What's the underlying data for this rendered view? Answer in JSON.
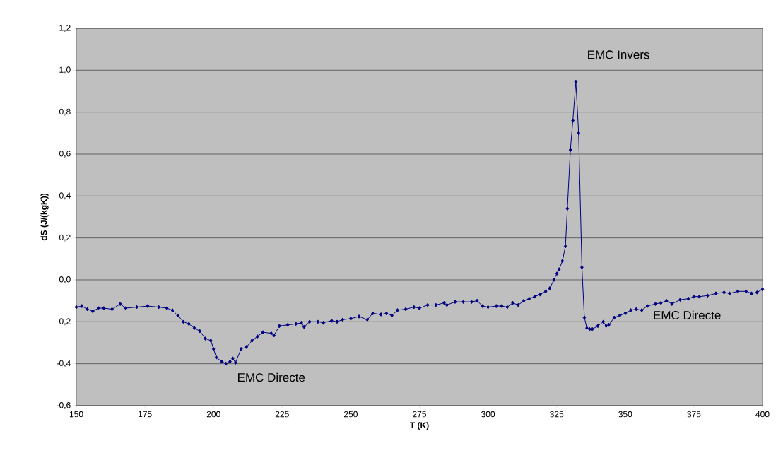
{
  "chart_data": {
    "type": "line",
    "xlabel": "T (K)",
    "ylabel": "dS (J/(kgK))",
    "xlim": [
      150,
      400
    ],
    "xticks": [
      150,
      175,
      200,
      225,
      250,
      275,
      300,
      325,
      350,
      375,
      400
    ],
    "ylim": [
      -0.6,
      1.2
    ],
    "yticks": [
      {
        "value": -0.6,
        "label": "-0,6"
      },
      {
        "value": -0.4,
        "label": "-0,4"
      },
      {
        "value": -0.2,
        "label": "-0,2"
      },
      {
        "value": 0,
        "label": "0,0"
      },
      {
        "value": 0.2,
        "label": "0,2"
      },
      {
        "value": 0.4,
        "label": "0,4"
      },
      {
        "value": 0.6,
        "label": "0,6"
      },
      {
        "value": 0.8,
        "label": "0,8"
      },
      {
        "value": 1.0,
        "label": "1,0"
      },
      {
        "value": 1.2,
        "label": "1,2"
      }
    ],
    "grid": "y",
    "marker": "diamond",
    "line_style": "solid",
    "annotations": [
      "EMC Invers",
      "EMC Directe",
      "EMC Directe"
    ],
    "series": [
      {
        "color": "#000080",
        "x": [
          150,
          152,
          154,
          156,
          158,
          160,
          163,
          166,
          168,
          172,
          176,
          180,
          183,
          185,
          187,
          189,
          191,
          193,
          195,
          197,
          199,
          200,
          201,
          203,
          204.5,
          206,
          207,
          208,
          210,
          212,
          214,
          216,
          218,
          221,
          222,
          224,
          227,
          230,
          232,
          233,
          235,
          238,
          240,
          243,
          245,
          247,
          250,
          253,
          256,
          258,
          261,
          263,
          265,
          267,
          270,
          273,
          275,
          278,
          281,
          284,
          285,
          288,
          291,
          294,
          296,
          298,
          300,
          303,
          305,
          307,
          309,
          311,
          313,
          315,
          317,
          319,
          321,
          322.5,
          324,
          325.1,
          325.9,
          327.1,
          328.2,
          328.9,
          330,
          330.9,
          332,
          333,
          334.2,
          335.1,
          336,
          337,
          338,
          340,
          342,
          343,
          344,
          346,
          348,
          350,
          352,
          354,
          356,
          358,
          361,
          363,
          365,
          367,
          370,
          373,
          375,
          377,
          380,
          383,
          386,
          388,
          391,
          394,
          396,
          398,
          400
        ],
        "values": [
          -0.13,
          -0.125,
          -0.14,
          -0.15,
          -0.135,
          -0.135,
          -0.14,
          -0.115,
          -0.135,
          -0.13,
          -0.125,
          -0.13,
          -0.135,
          -0.145,
          -0.17,
          -0.2,
          -0.21,
          -0.23,
          -0.245,
          -0.28,
          -0.29,
          -0.33,
          -0.37,
          -0.39,
          -0.4,
          -0.39,
          -0.375,
          -0.395,
          -0.33,
          -0.32,
          -0.29,
          -0.27,
          -0.25,
          -0.255,
          -0.265,
          -0.22,
          -0.215,
          -0.21,
          -0.205,
          -0.225,
          -0.2,
          -0.2,
          -0.205,
          -0.195,
          -0.2,
          -0.19,
          -0.185,
          -0.175,
          -0.19,
          -0.16,
          -0.165,
          -0.16,
          -0.17,
          -0.145,
          -0.14,
          -0.13,
          -0.135,
          -0.12,
          -0.12,
          -0.11,
          -0.12,
          -0.105,
          -0.105,
          -0.105,
          -0.1,
          -0.125,
          -0.13,
          -0.125,
          -0.125,
          -0.13,
          -0.11,
          -0.12,
          -0.1,
          -0.09,
          -0.08,
          -0.07,
          -0.055,
          -0.04,
          0.0,
          0.03,
          0.05,
          0.09,
          0.16,
          0.34,
          0.62,
          0.76,
          0.945,
          0.7,
          0.06,
          -0.18,
          -0.23,
          -0.235,
          -0.235,
          -0.22,
          -0.2,
          -0.22,
          -0.215,
          -0.18,
          -0.17,
          -0.16,
          -0.145,
          -0.14,
          -0.145,
          -0.125,
          -0.115,
          -0.11,
          -0.1,
          -0.115,
          -0.095,
          -0.09,
          -0.08,
          -0.08,
          -0.075,
          -0.065,
          -0.06,
          -0.065,
          -0.055,
          -0.055,
          -0.065,
          -0.06,
          -0.045
        ]
      }
    ]
  }
}
